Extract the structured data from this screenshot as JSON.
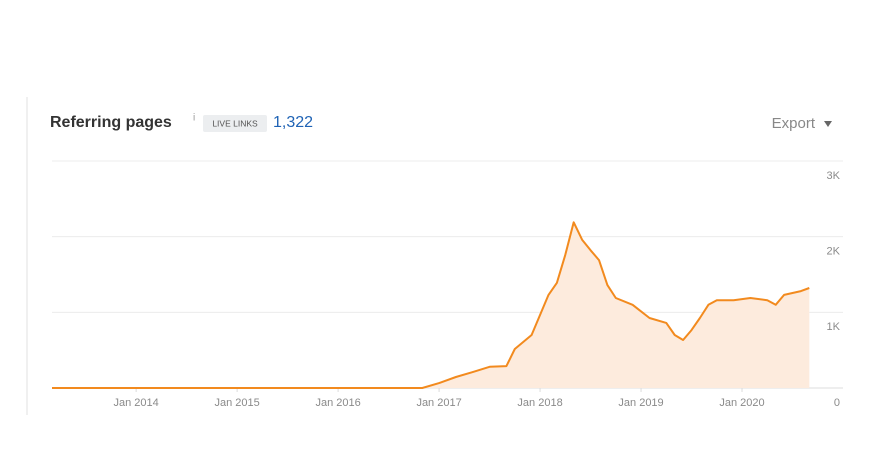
{
  "chart_data": {
    "type": "area",
    "title": "Referring pages",
    "info_icon": "i",
    "badge": "LIVE LINKS",
    "total": "1,322",
    "export": "Export",
    "color": "#f28a1e",
    "fill": "#fdebdd",
    "grid": true,
    "x": [
      "2013-03",
      "2016-11",
      "2017-01",
      "2017-03",
      "2017-05",
      "2017-07",
      "2017-09",
      "2017-10",
      "2017-12",
      "2018-02",
      "2018-03",
      "2018-04",
      "2018-05",
      "2018-06",
      "2018-07",
      "2018-08",
      "2018-09",
      "2018-10",
      "2018-12",
      "2019-02",
      "2019-04",
      "2019-05",
      "2019-06",
      "2019-07",
      "2019-08",
      "2019-09",
      "2019-10",
      "2019-12",
      "2020-02",
      "2020-04",
      "2020-05",
      "2020-06",
      "2020-08",
      "2020-09"
    ],
    "values": [
      0,
      0,
      65,
      145,
      210,
      280,
      290,
      515,
      700,
      1230,
      1390,
      1760,
      2190,
      1960,
      1820,
      1690,
      1360,
      1190,
      1100,
      925,
      860,
      700,
      635,
      765,
      925,
      1100,
      1160,
      1160,
      1190,
      1160,
      1100,
      1230,
      1280,
      1322
    ],
    "xlim": [
      "2013-03",
      "2021-01"
    ],
    "xticks": [
      {
        "value": "2014-01",
        "label": "Jan 2014"
      },
      {
        "value": "2015-01",
        "label": "Jan 2015"
      },
      {
        "value": "2016-01",
        "label": "Jan 2016"
      },
      {
        "value": "2017-01",
        "label": "Jan 2017"
      },
      {
        "value": "2018-01",
        "label": "Jan 2018"
      },
      {
        "value": "2019-01",
        "label": "Jan 2019"
      },
      {
        "value": "2020-01",
        "label": "Jan 2020"
      }
    ],
    "ylim": [
      0,
      3000
    ],
    "yticks": [
      0,
      {
        "value": 1000,
        "label": "1K"
      },
      {
        "value": 2000,
        "label": "2K"
      },
      {
        "value": 3000,
        "label": "3K"
      }
    ]
  }
}
